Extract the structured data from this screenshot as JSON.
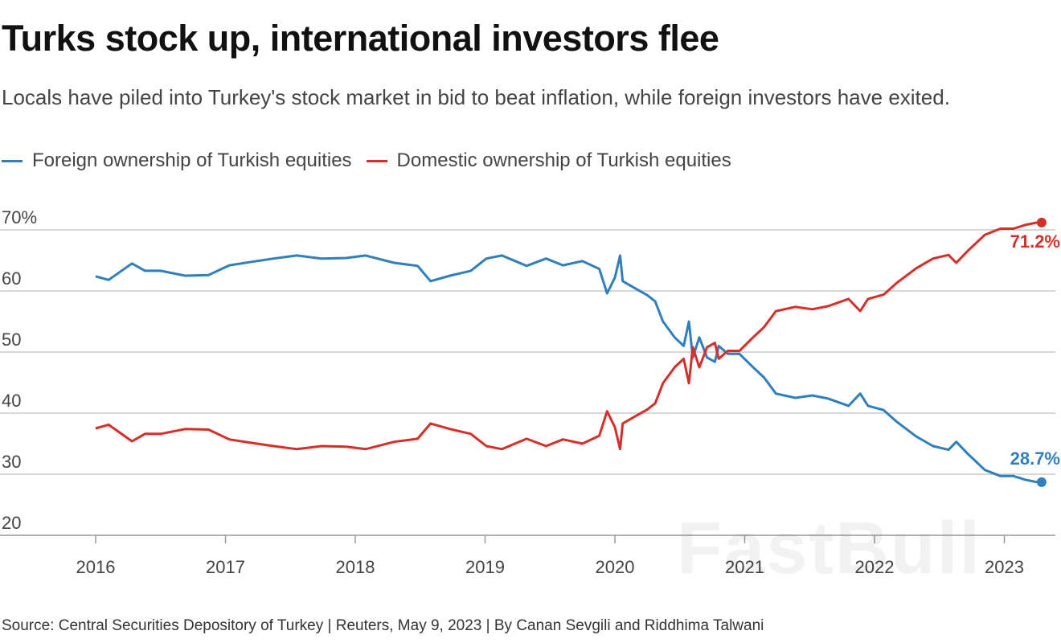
{
  "title": "Turks stock up, international investors flee",
  "subtitle": "Locals have piled into Turkey's stock market in bid to beat inflation, while foreign investors have exited.",
  "source": "Source: Central Securities Depository of Turkey | Reuters, May 9, 2023 | By Canan Sevgili and Riddhima Talwani",
  "watermark": "FastBull",
  "chart_data": {
    "type": "line",
    "title": "Turks stock up, international investors flee",
    "xlabel": "",
    "ylabel": "",
    "ylim": [
      20,
      70
    ],
    "xlim": [
      2016,
      2023.3
    ],
    "grid": "horizontal",
    "legend_position": "top-left",
    "y_ticks": [
      "70%",
      "60",
      "50",
      "40",
      "30",
      "20"
    ],
    "y_tick_values": [
      70,
      60,
      50,
      40,
      30,
      20
    ],
    "x_ticks": [
      "2016",
      "2017",
      "2018",
      "2019",
      "2020",
      "2021",
      "2022",
      "2023"
    ],
    "x_tick_values": [
      2016,
      2017,
      2018,
      2019,
      2020,
      2021,
      2022,
      2023
    ],
    "x": [
      2016.0,
      2016.1,
      2016.28,
      2016.38,
      2016.5,
      2016.69,
      2016.87,
      2017.03,
      2017.18,
      2017.37,
      2017.55,
      2017.74,
      2017.93,
      2018.08,
      2018.3,
      2018.48,
      2018.58,
      2018.73,
      2018.89,
      2019.01,
      2019.13,
      2019.32,
      2019.47,
      2019.6,
      2019.75,
      2019.88,
      2019.94,
      2020.0,
      2020.04,
      2020.06,
      2020.15,
      2020.25,
      2020.31,
      2020.37,
      2020.46,
      2020.53,
      2020.57,
      2020.6,
      2020.65,
      2020.71,
      2020.77,
      2020.8,
      2020.87,
      2020.96,
      2021.05,
      2021.15,
      2021.24,
      2021.39,
      2021.52,
      2021.64,
      2021.8,
      2021.89,
      2021.95,
      2022.07,
      2022.17,
      2022.32,
      2022.45,
      2022.57,
      2022.63,
      2022.72,
      2022.85,
      2022.97,
      2023.07,
      2023.16,
      2023.25
    ],
    "series": [
      {
        "name": "Foreign ownership of Turkish equities",
        "color": "#2f7fbd",
        "end_label": "28.7%",
        "values": [
          62.4,
          61.8,
          64.5,
          63.3,
          63.3,
          62.5,
          62.6,
          64.2,
          64.7,
          65.3,
          65.8,
          65.3,
          65.4,
          65.8,
          64.6,
          64.1,
          61.6,
          62.5,
          63.3,
          65.3,
          65.8,
          64.1,
          65.3,
          64.2,
          64.9,
          63.6,
          59.6,
          62.2,
          65.8,
          61.6,
          60.5,
          59.3,
          58.3,
          55.0,
          52.4,
          51.0,
          55.0,
          49.1,
          52.4,
          49.1,
          48.4,
          51.0,
          49.7,
          49.7,
          47.8,
          45.8,
          43.2,
          42.5,
          42.9,
          42.4,
          41.2,
          43.2,
          41.2,
          40.5,
          38.6,
          36.2,
          34.6,
          34.0,
          35.3,
          33.3,
          30.7,
          29.7,
          29.7,
          29.1,
          28.7
        ]
      },
      {
        "name": "Domestic ownership of Turkish equities",
        "color": "#d62f2a",
        "end_label": "71.2%",
        "values": [
          37.5,
          38.1,
          35.4,
          36.6,
          36.6,
          37.4,
          37.3,
          35.7,
          35.2,
          34.6,
          34.1,
          34.6,
          34.5,
          34.1,
          35.3,
          35.8,
          38.3,
          37.4,
          36.6,
          34.6,
          34.1,
          35.8,
          34.6,
          35.7,
          35.0,
          36.3,
          40.3,
          37.7,
          34.1,
          38.3,
          39.4,
          40.6,
          41.6,
          44.9,
          47.5,
          48.9,
          44.9,
          50.8,
          47.5,
          50.8,
          51.5,
          48.9,
          50.2,
          50.2,
          52.1,
          54.1,
          56.7,
          57.4,
          57.0,
          57.5,
          58.7,
          56.7,
          58.7,
          59.4,
          61.3,
          63.7,
          65.3,
          65.9,
          64.6,
          66.6,
          69.2,
          70.2,
          70.2,
          70.8,
          71.2
        ]
      }
    ]
  }
}
